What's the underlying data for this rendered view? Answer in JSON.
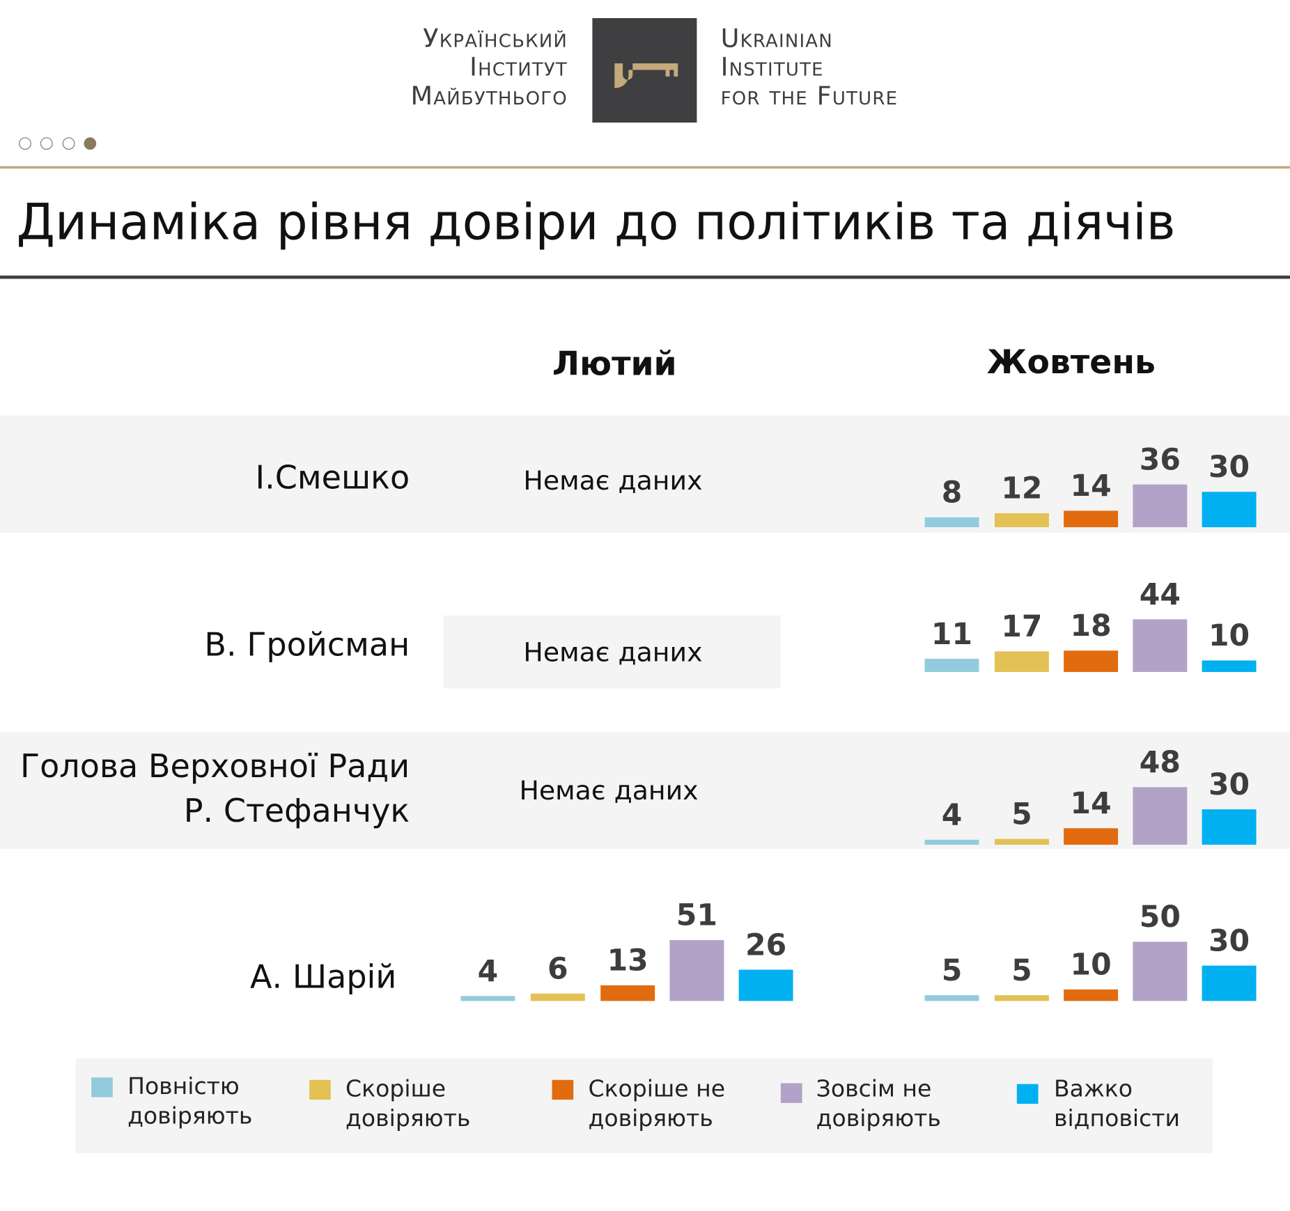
{
  "header": {
    "logo_left": [
      "Український",
      "Інститут",
      "Майбутнього"
    ],
    "logo_right": [
      "Ukrainian",
      "Institute",
      "for the Future"
    ],
    "pager": {
      "total": 4,
      "active": 4
    }
  },
  "title": "Динаміка рівня довіри до політиків та діячів",
  "colors": {
    "fully_trust": "#92cbdd",
    "rather_trust": "#e3c154",
    "rather_not": "#e16b0e",
    "not_at_all": "#b2a2c7",
    "hard_to_say": "#00b0f0",
    "gold": "#c0a87a"
  },
  "chart_data": {
    "type": "bar",
    "title": "Динаміка рівня довіри до політиків та діячів",
    "periods": [
      "Лютий",
      "Жовтень"
    ],
    "legend": [
      "Повністю довіряють",
      "Скоріше довіряють",
      "Скоріше не довіряють",
      "Зовсім не довіряють",
      "Важко відповісти"
    ],
    "no_data_label": "Немає даних",
    "rows": [
      {
        "name": [
          "І.Смешко"
        ],
        "feb": null,
        "oct": [
          8,
          12,
          14,
          36,
          30
        ]
      },
      {
        "name": [
          "В. Гройсман"
        ],
        "feb": null,
        "oct": [
          11,
          17,
          18,
          44,
          10
        ]
      },
      {
        "name": [
          "Голова Верховної Ради",
          "Р. Стефанчук"
        ],
        "feb": null,
        "oct": [
          4,
          5,
          14,
          48,
          30
        ]
      },
      {
        "name": [
          "А. Шарій"
        ],
        "feb": [
          4,
          6,
          13,
          51,
          26
        ],
        "oct": [
          5,
          5,
          10,
          50,
          30
        ]
      }
    ]
  },
  "legend": [
    [
      "Повністю",
      "довіряють"
    ],
    [
      "Скоріше",
      "довіряють"
    ],
    [
      "Скоріше не",
      "довіряють"
    ],
    [
      "Зовсім не",
      "довіряють"
    ],
    [
      "Важко",
      "відповісти"
    ]
  ]
}
